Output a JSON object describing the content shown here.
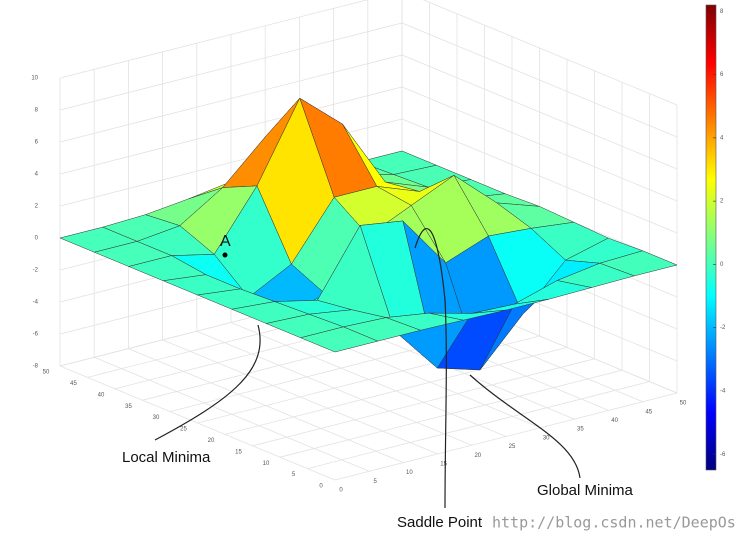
{
  "chart_data": {
    "type": "surface",
    "z": [
      [
        0,
        0,
        0,
        -0.05,
        -0.1,
        -0.1,
        -0.05,
        0,
        0
      ],
      [
        0,
        0,
        -0.1,
        -0.5,
        -1.2,
        -1.3,
        -0.5,
        -0.1,
        0
      ],
      [
        0,
        -0.1,
        -0.5,
        -2.5,
        -5.5,
        -6.3,
        -3.5,
        -0.8,
        -0.1
      ],
      [
        0,
        -0.2,
        -0.8,
        3.2,
        2.8,
        -0.5,
        0.5,
        0.3,
        0
      ],
      [
        0,
        -0.3,
        -2.6,
        -2.0,
        0.98,
        2.2,
        3.4,
        1.0,
        0.1
      ],
      [
        0,
        -0.3,
        -2.4,
        -1.0,
        2.5,
        2.5,
        1.5,
        0.4,
        0
      ],
      [
        0,
        0,
        -0.6,
        3.0,
        7.8,
        5.5,
        1.2,
        0.2,
        0
      ],
      [
        0,
        0,
        0.3,
        2.0,
        4.5,
        3.2,
        0.8,
        0.1,
        0
      ],
      [
        0,
        0,
        0.1,
        0.4,
        0.8,
        0.6,
        0.2,
        0,
        0
      ]
    ],
    "xlim": [
      0,
      50
    ],
    "xticks": [
      0,
      5,
      10,
      15,
      20,
      25,
      30,
      35,
      40,
      45,
      50
    ],
    "ylim": [
      0,
      50
    ],
    "yticks": [
      0,
      5,
      10,
      15,
      20,
      25,
      30,
      35,
      40,
      45,
      50
    ],
    "zlim": [
      -8,
      10
    ],
    "zticks": [
      -8,
      -6,
      -4,
      -2,
      0,
      2,
      4,
      6,
      8,
      10
    ],
    "clim": [
      -6.5,
      8.2
    ],
    "cticks": [
      -6,
      -4,
      -2,
      0,
      2,
      4,
      6,
      8
    ],
    "colormap": "jet",
    "grid": true,
    "annotations": [
      {
        "text": "A"
      },
      {
        "text": "Local Minima"
      },
      {
        "text": "Saddle Point"
      },
      {
        "text": "Global Minima"
      }
    ],
    "watermark": "http://blog.csdn.net/DeepOscar"
  }
}
